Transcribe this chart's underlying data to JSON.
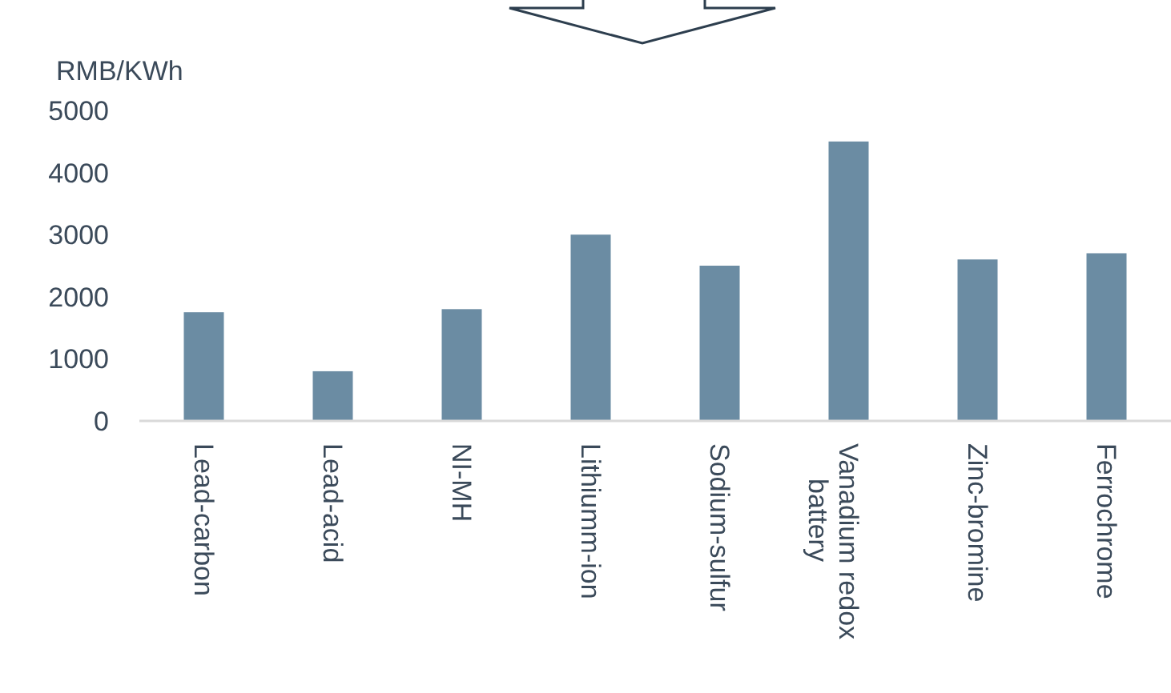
{
  "chart_data": {
    "type": "bar",
    "ylabel": "RMB/KWh",
    "categories": [
      "Lead-carbon",
      "Lead-acid",
      "NI-MH",
      "Lithiumm-ion",
      "Sodium-sulfur",
      "Vanadium redox battery",
      "Zinc-bromine",
      "Ferrochrome"
    ],
    "values": [
      1750,
      800,
      1800,
      3000,
      2500,
      4500,
      2600,
      2700
    ],
    "color": "#6b8ca3",
    "ylim": [
      0,
      5000
    ],
    "yticks": [
      0,
      1000,
      2000,
      3000,
      4000,
      5000
    ],
    "grid": false
  }
}
